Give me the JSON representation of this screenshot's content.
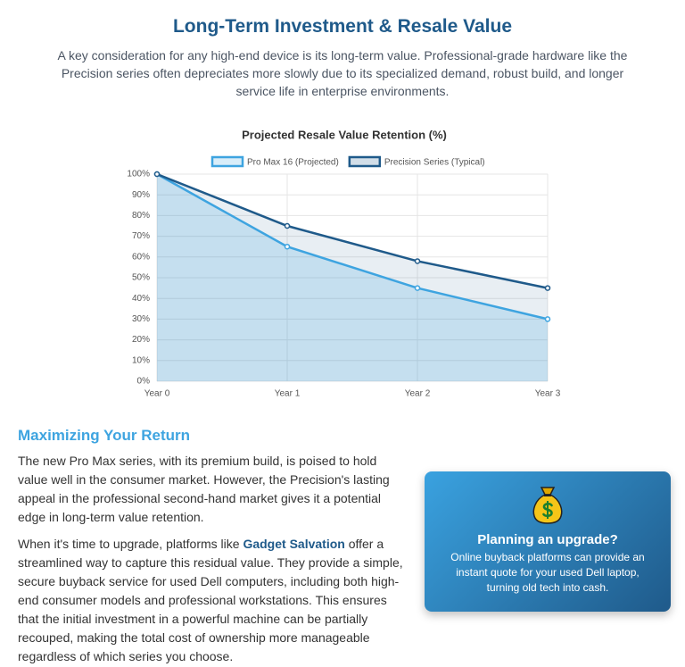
{
  "header": {
    "title": "Long-Term Investment & Resale Value",
    "intro": "A key consideration for any high-end device is its long-term value. Professional-grade hardware like the Precision series often depreciates more slowly due to its specialized demand, robust build, and longer service life in enterprise environments."
  },
  "chart_data": {
    "type": "line",
    "title": "Projected Resale Value Retention (%)",
    "categories": [
      "Year 0",
      "Year 1",
      "Year 2",
      "Year 3"
    ],
    "series": [
      {
        "name": "Pro Max 16 (Projected)",
        "color": "#3ea4e0",
        "values": [
          100,
          65,
          45,
          30
        ]
      },
      {
        "name": "Precision Series (Typical)",
        "color": "#1f5a8a",
        "values": [
          100,
          75,
          58,
          45
        ]
      }
    ],
    "ylim": [
      0,
      100
    ],
    "yticks": [
      {
        "value": 0,
        "label": "0%"
      },
      {
        "value": 10,
        "label": "10%"
      },
      {
        "value": 20,
        "label": "20%"
      },
      {
        "value": 30,
        "label": "30%"
      },
      {
        "value": 40,
        "label": "40%"
      },
      {
        "value": 50,
        "label": "50%"
      },
      {
        "value": 60,
        "label": "60%"
      },
      {
        "value": 70,
        "label": "70%"
      },
      {
        "value": 80,
        "label": "80%"
      },
      {
        "value": 90,
        "label": "90%"
      },
      {
        "value": 100,
        "label": "100%"
      }
    ],
    "grid": true,
    "fill": true,
    "legend": "top"
  },
  "section": {
    "heading": "Maximizing Your Return",
    "paragraph_1": "The new Pro Max series, with its premium build, is poised to hold value well in the consumer market. However, the Precision's lasting appeal in the professional second-hand market gives it a potential edge in long-term value retention.",
    "paragraph_2": {
      "before": "When it's time to upgrade, platforms like ",
      "link": "Gadget Salvation",
      "after": " offer a streamlined way to capture this residual value. They provide a simple, secure buyback service for used Dell computers, including both high-end consumer models and professional workstations. This ensures that the initial investment in a powerful machine can be partially recouped, making the total cost of ownership more manageable regardless of which series you choose."
    }
  },
  "card": {
    "title": "Planning an upgrade?",
    "text": "Online buyback platforms can provide an instant quote for your used Dell laptop, turning old tech into cash."
  }
}
